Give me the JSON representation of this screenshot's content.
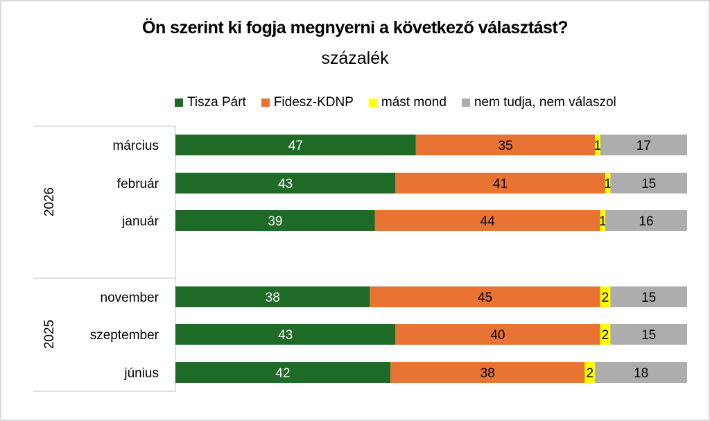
{
  "chart_data": {
    "type": "bar",
    "orientation": "horizontal",
    "stacked": true,
    "title": "Ön szerint ki fogja megnyerni a következő választást?",
    "subtitle": "százalék",
    "xlabel": "",
    "ylabel": "",
    "xlim": [
      0,
      100
    ],
    "grid": false,
    "legend_position": "top",
    "groups": [
      {
        "label": "2026",
        "categories": [
          "március",
          "február",
          "január"
        ]
      },
      {
        "label": "2025",
        "categories": [
          "november",
          "szeptember",
          "június"
        ]
      }
    ],
    "categories": [
      "március",
      "február",
      "január",
      "november",
      "szeptember",
      "június"
    ],
    "series": [
      {
        "name": "Tisza Párt",
        "color": "#1e6b27",
        "label_color": "#ffffff",
        "values": [
          47,
          43,
          39,
          38,
          43,
          42
        ]
      },
      {
        "name": "Fidesz-KDNP",
        "color": "#e87332",
        "label_color": "#000000",
        "values": [
          35,
          41,
          44,
          45,
          40,
          38
        ]
      },
      {
        "name": "mást mond",
        "color": "#ffff00",
        "label_color": "#000000",
        "values": [
          1,
          1,
          1,
          2,
          2,
          2
        ]
      },
      {
        "name": "nem tudja, nem válaszol",
        "color": "#adadad",
        "label_color": "#000000",
        "values": [
          17,
          15,
          16,
          15,
          15,
          18
        ]
      }
    ]
  }
}
